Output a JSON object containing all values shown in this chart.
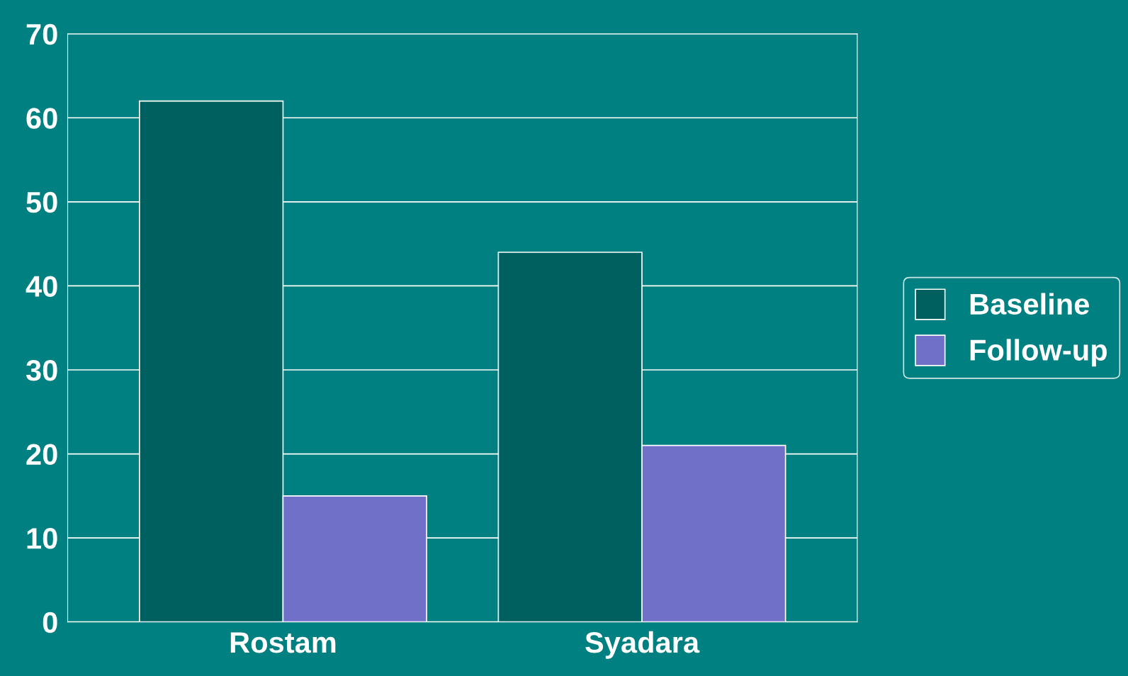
{
  "chart_data": {
    "type": "bar",
    "categories": [
      "Rostam",
      "Syadara"
    ],
    "series": [
      {
        "name": "Baseline",
        "color": "#006060",
        "values": [
          62,
          44
        ]
      },
      {
        "name": "Follow-up",
        "color": "#7070c8",
        "values": [
          15,
          21
        ]
      }
    ],
    "ylim": [
      0,
      70
    ],
    "yticks": [
      0,
      10,
      20,
      30,
      40,
      50,
      60,
      70
    ],
    "grid": "y",
    "legend": "right"
  }
}
